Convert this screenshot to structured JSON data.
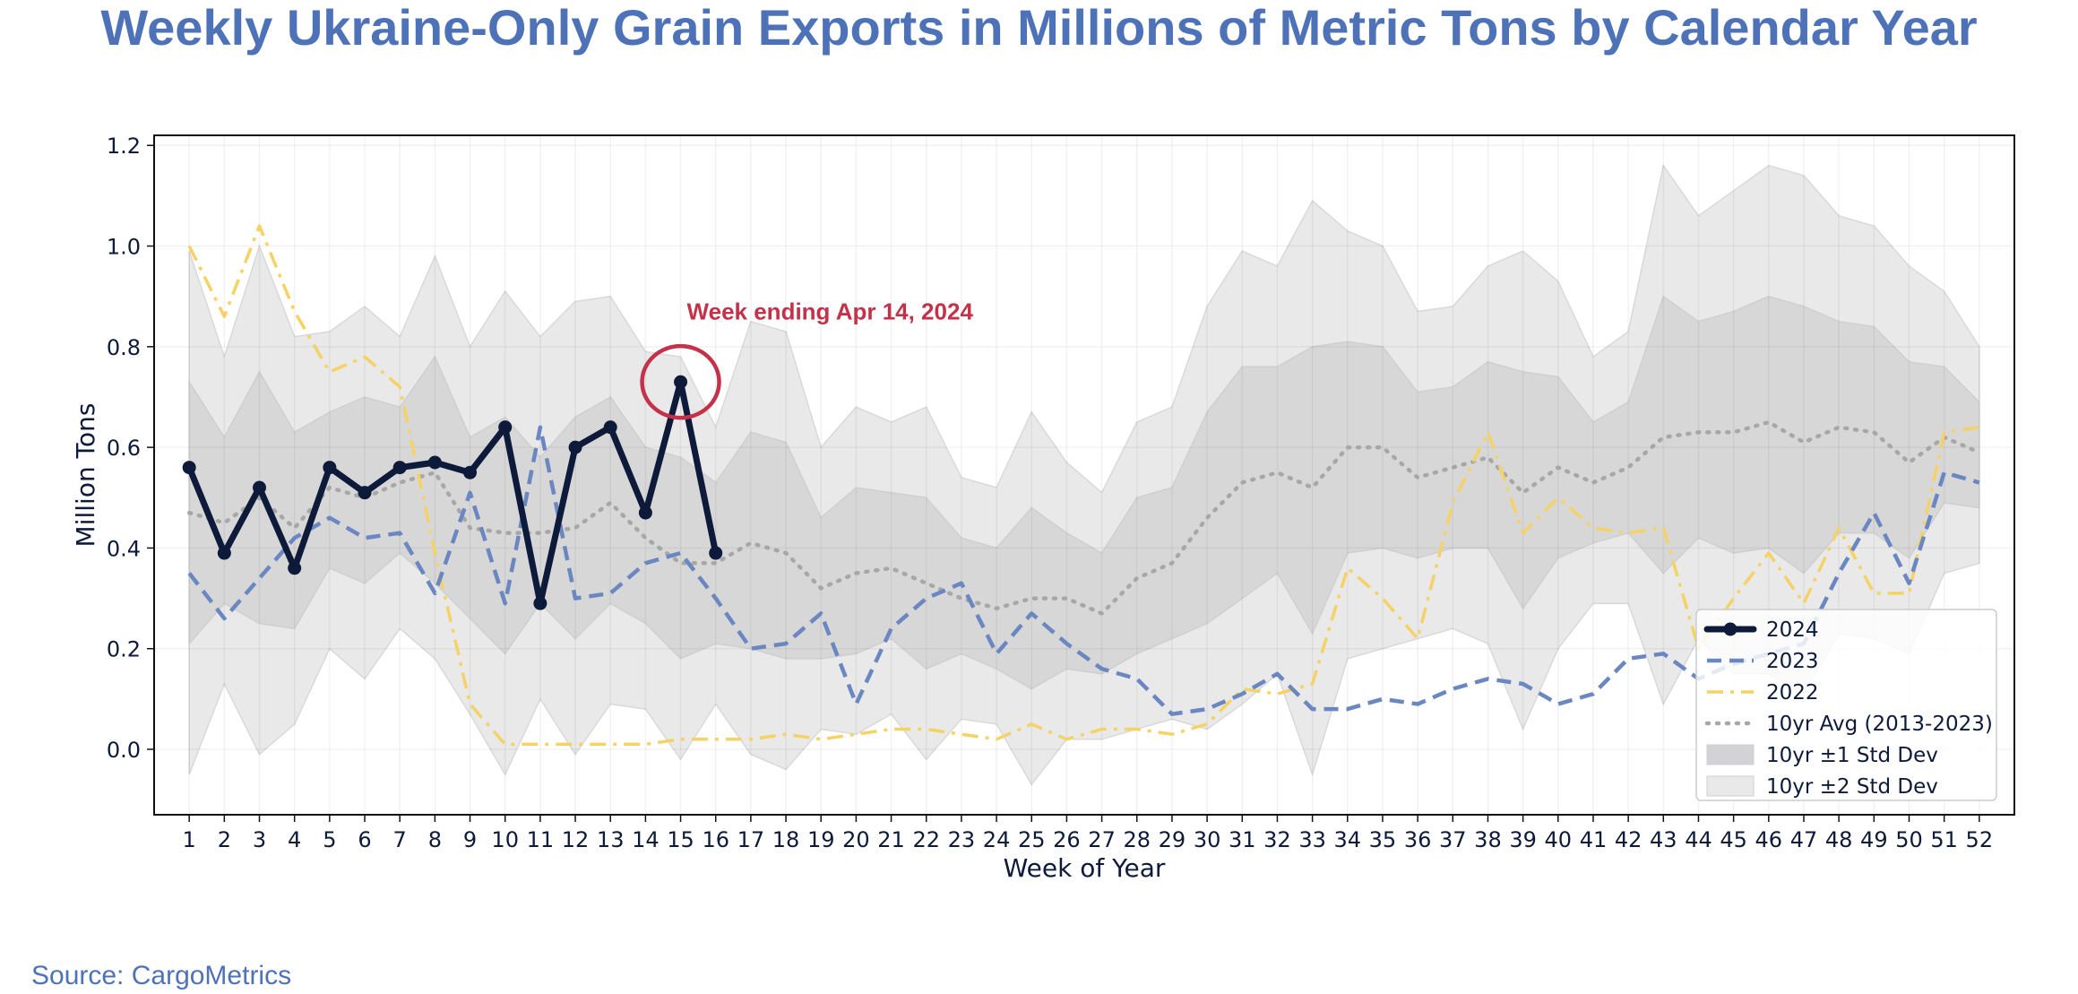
{
  "page": {
    "title": "Weekly Ukraine-Only Grain Exports in Millions of Metric Tons by Calendar Year",
    "source": "Source: CargoMetrics"
  },
  "chart_data": {
    "type": "line",
    "xlabel": "Week of Year",
    "ylabel": "Million Tons",
    "xlim": [
      0,
      53
    ],
    "ylim": [
      -0.13,
      1.22
    ],
    "x_ticks": [
      1,
      2,
      3,
      4,
      5,
      6,
      7,
      8,
      9,
      10,
      11,
      12,
      13,
      14,
      15,
      16,
      17,
      18,
      19,
      20,
      21,
      22,
      23,
      24,
      25,
      26,
      27,
      28,
      29,
      30,
      31,
      32,
      33,
      34,
      35,
      36,
      37,
      38,
      39,
      40,
      41,
      42,
      43,
      44,
      45,
      46,
      47,
      48,
      49,
      50,
      51,
      52
    ],
    "y_ticks": [
      0.0,
      0.2,
      0.4,
      0.6,
      0.8,
      1.0,
      1.2
    ],
    "y_tick_labels": [
      "0.0",
      "0.2",
      "0.4",
      "0.6",
      "0.8",
      "1.0",
      "1.2"
    ],
    "grid": true,
    "legend_position": "lower-right",
    "colors": {
      "2024": "#0d1a3a",
      "2023": "#6b87c1",
      "2022": "#f5d265",
      "avg": "#a7a7a7",
      "band1": "#d3d3d5",
      "band2": "#e9e9ea",
      "annotation": "#c4324a",
      "axis_text": "#0d1a3a"
    },
    "series": [
      {
        "name": "2024",
        "style": "solid-thick-markers",
        "x": [
          1,
          2,
          3,
          4,
          5,
          6,
          7,
          8,
          9,
          10,
          11,
          12,
          13,
          14,
          15,
          16
        ],
        "values": [
          0.56,
          0.39,
          0.52,
          0.36,
          0.56,
          0.51,
          0.56,
          0.57,
          0.55,
          0.64,
          0.29,
          0.6,
          0.64,
          0.47,
          0.73,
          0.39
        ]
      },
      {
        "name": "2023",
        "style": "dashed",
        "x": [
          1,
          2,
          3,
          4,
          5,
          6,
          7,
          8,
          9,
          10,
          11,
          12,
          13,
          14,
          15,
          16,
          17,
          18,
          19,
          20,
          21,
          22,
          23,
          24,
          25,
          26,
          27,
          28,
          29,
          30,
          31,
          32,
          33,
          34,
          35,
          36,
          37,
          38,
          39,
          40,
          41,
          42,
          43,
          44,
          45,
          46,
          47,
          48,
          49,
          50,
          51,
          52
        ],
        "values": [
          0.35,
          0.26,
          0.34,
          0.42,
          0.46,
          0.42,
          0.43,
          0.31,
          0.51,
          0.29,
          0.64,
          0.3,
          0.31,
          0.37,
          0.39,
          0.3,
          0.2,
          0.21,
          0.27,
          0.09,
          0.24,
          0.3,
          0.33,
          0.19,
          0.27,
          0.21,
          0.16,
          0.14,
          0.07,
          0.08,
          0.11,
          0.15,
          0.08,
          0.08,
          0.1,
          0.09,
          0.12,
          0.14,
          0.13,
          0.09,
          0.11,
          0.18,
          0.19,
          0.14,
          0.17,
          0.19,
          0.21,
          0.35,
          0.47,
          0.33,
          0.55,
          0.53
        ]
      },
      {
        "name": "2022",
        "style": "dashdot",
        "x": [
          1,
          2,
          3,
          4,
          5,
          6,
          7,
          8,
          9,
          10,
          11,
          12,
          13,
          14,
          15,
          16,
          17,
          18,
          19,
          20,
          21,
          22,
          23,
          24,
          25,
          26,
          27,
          28,
          29,
          30,
          31,
          32,
          33,
          34,
          35,
          36,
          37,
          38,
          39,
          40,
          41,
          42,
          43,
          44,
          45,
          46,
          47,
          48,
          49,
          50,
          51,
          52
        ],
        "values": [
          1.0,
          0.86,
          1.04,
          0.87,
          0.75,
          0.78,
          0.72,
          0.39,
          0.09,
          0.01,
          0.01,
          0.01,
          0.01,
          0.01,
          0.02,
          0.02,
          0.02,
          0.03,
          0.02,
          0.03,
          0.04,
          0.04,
          0.03,
          0.02,
          0.05,
          0.02,
          0.04,
          0.04,
          0.03,
          0.05,
          0.12,
          0.11,
          0.13,
          0.36,
          0.3,
          0.22,
          0.49,
          0.63,
          0.43,
          0.5,
          0.44,
          0.43,
          0.44,
          0.2,
          0.3,
          0.39,
          0.29,
          0.44,
          0.31,
          0.31,
          0.63,
          0.64
        ]
      },
      {
        "name": "10yr Avg (2013-2023)",
        "style": "dotted",
        "x": [
          1,
          2,
          3,
          4,
          5,
          6,
          7,
          8,
          9,
          10,
          11,
          12,
          13,
          14,
          15,
          16,
          17,
          18,
          19,
          20,
          21,
          22,
          23,
          24,
          25,
          26,
          27,
          28,
          29,
          30,
          31,
          32,
          33,
          34,
          35,
          36,
          37,
          38,
          39,
          40,
          41,
          42,
          43,
          44,
          45,
          46,
          47,
          48,
          49,
          50,
          51,
          52
        ],
        "values": [
          0.47,
          0.45,
          0.5,
          0.44,
          0.52,
          0.5,
          0.53,
          0.55,
          0.44,
          0.43,
          0.43,
          0.44,
          0.49,
          0.42,
          0.37,
          0.37,
          0.41,
          0.39,
          0.32,
          0.35,
          0.36,
          0.33,
          0.3,
          0.28,
          0.3,
          0.3,
          0.27,
          0.34,
          0.37,
          0.46,
          0.53,
          0.55,
          0.52,
          0.6,
          0.6,
          0.54,
          0.56,
          0.58,
          0.51,
          0.56,
          0.53,
          0.56,
          0.62,
          0.63,
          0.63,
          0.65,
          0.61,
          0.64,
          0.63,
          0.57,
          0.62,
          0.59
        ]
      }
    ],
    "bands": [
      {
        "name": "10yr ±1 Std Dev",
        "upper": [
          0.73,
          0.62,
          0.75,
          0.63,
          0.67,
          0.7,
          0.68,
          0.78,
          0.62,
          0.66,
          0.58,
          0.66,
          0.7,
          0.6,
          0.58,
          0.53,
          0.63,
          0.61,
          0.46,
          0.52,
          0.51,
          0.5,
          0.42,
          0.4,
          0.48,
          0.43,
          0.39,
          0.5,
          0.52,
          0.67,
          0.76,
          0.76,
          0.8,
          0.81,
          0.8,
          0.71,
          0.72,
          0.77,
          0.75,
          0.74,
          0.65,
          0.69,
          0.9,
          0.85,
          0.87,
          0.9,
          0.88,
          0.85,
          0.84,
          0.77,
          0.76,
          0.69
        ],
        "lower": [
          0.21,
          0.29,
          0.25,
          0.24,
          0.36,
          0.33,
          0.39,
          0.33,
          0.26,
          0.19,
          0.29,
          0.22,
          0.29,
          0.25,
          0.18,
          0.21,
          0.2,
          0.18,
          0.18,
          0.19,
          0.22,
          0.16,
          0.19,
          0.16,
          0.12,
          0.16,
          0.15,
          0.19,
          0.22,
          0.25,
          0.3,
          0.35,
          0.23,
          0.39,
          0.4,
          0.38,
          0.4,
          0.4,
          0.28,
          0.38,
          0.41,
          0.43,
          0.35,
          0.42,
          0.39,
          0.4,
          0.35,
          0.43,
          0.43,
          0.38,
          0.49,
          0.48
        ]
      },
      {
        "name": "10yr ±2 Std Dev",
        "upper": [
          0.99,
          0.78,
          1.0,
          0.82,
          0.83,
          0.88,
          0.82,
          0.98,
          0.8,
          0.91,
          0.82,
          0.89,
          0.9,
          0.79,
          0.78,
          0.64,
          0.85,
          0.83,
          0.6,
          0.68,
          0.65,
          0.68,
          0.54,
          0.52,
          0.67,
          0.57,
          0.51,
          0.65,
          0.68,
          0.88,
          0.99,
          0.96,
          1.09,
          1.03,
          1.0,
          0.87,
          0.88,
          0.96,
          0.99,
          0.93,
          0.78,
          0.83,
          1.16,
          1.06,
          1.11,
          1.16,
          1.14,
          1.06,
          1.04,
          0.96,
          0.91,
          0.8
        ],
        "lower": [
          -0.05,
          0.13,
          -0.01,
          0.05,
          0.2,
          0.14,
          0.24,
          0.18,
          0.07,
          -0.05,
          0.1,
          -0.01,
          0.09,
          0.08,
          -0.02,
          0.09,
          -0.01,
          -0.04,
          0.04,
          0.03,
          0.07,
          -0.02,
          0.06,
          0.05,
          -0.07,
          0.02,
          0.02,
          0.04,
          0.06,
          0.04,
          0.09,
          0.15,
          -0.05,
          0.18,
          0.2,
          0.22,
          0.24,
          0.21,
          0.04,
          0.2,
          0.29,
          0.29,
          0.09,
          0.22,
          0.15,
          0.15,
          0.11,
          0.23,
          0.22,
          0.19,
          0.35,
          0.37
        ]
      }
    ],
    "legend": [
      "2024",
      "2023",
      "2022",
      "10yr Avg (2013-2023)",
      "10yr ±1 Std Dev",
      "10yr ±2 Std Dev"
    ],
    "annotation": {
      "text": "Week ending Apr 14, 2024",
      "x": 15,
      "y": 0.73
    }
  }
}
